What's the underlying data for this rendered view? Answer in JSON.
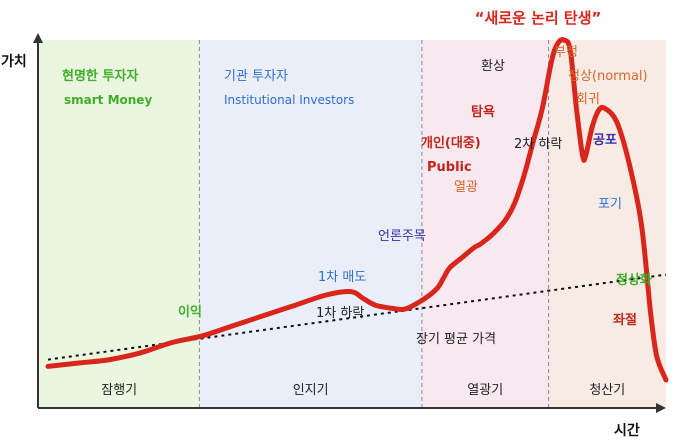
{
  "chart_data": {
    "type": "line",
    "title": "“새로운 논리 탄생”",
    "ylabel": "가치",
    "xlabel": "시간",
    "xlim": [
      0,
      100
    ],
    "ylim": [
      0,
      100
    ],
    "grid": false,
    "series": [
      {
        "name": "",
        "color": "#d8261c",
        "x": [
          0,
          5,
          10,
          15,
          20,
          25,
          30,
          35,
          40,
          45,
          49,
          51,
          53,
          56,
          58,
          61,
          63,
          64,
          65,
          67,
          69,
          70,
          72,
          74,
          75.5,
          77,
          78.5,
          80,
          81.5,
          82.5,
          83.5,
          84.5,
          85.5,
          86.5,
          87,
          88,
          89,
          90,
          92,
          94,
          96,
          97.5,
          98.5,
          100
        ],
        "values": [
          4,
          5,
          6,
          8,
          11,
          13,
          16,
          19,
          22,
          25,
          26,
          24,
          22,
          21,
          21,
          24,
          27,
          30,
          33,
          36,
          39,
          40,
          43,
          47,
          52,
          60,
          70,
          80,
          94,
          99,
          100,
          97,
          80,
          66,
          66,
          74,
          79,
          80,
          76,
          64,
          46,
          20,
          7,
          0
        ]
      },
      {
        "name": "",
        "color": "#111111",
        "dashed": true,
        "x": [
          0,
          100
        ],
        "values": [
          6,
          31
        ]
      }
    ],
    "phases": [
      {
        "label": "잠행기",
        "from": 0,
        "to": 24.5,
        "color": "#eaf6df"
      },
      {
        "label": "인지기",
        "from": 24.5,
        "to": 60.5,
        "color": "#e9eef8"
      },
      {
        "label": "열광기",
        "from": 60.5,
        "to": 81,
        "color": "#f8e8ef"
      },
      {
        "label": "청산기",
        "from": 81,
        "to": 100,
        "color": "#f7ebe4"
      }
    ],
    "annotations": [
      {
        "text": "현명한 투자자",
        "color": "#3fae2a",
        "weight": "bold"
      },
      {
        "text": "smart Money",
        "color": "#3fae2a",
        "weight": "bold"
      },
      {
        "text": "기관 투자자",
        "color": "#2f6fcf",
        "weight": "normal"
      },
      {
        "text": "Institutional Investors",
        "color": "#2f6fcf",
        "weight": "normal"
      },
      {
        "text": "이익",
        "color": "#3fae2a",
        "weight": "bold"
      },
      {
        "text": "1차 매도",
        "color": "#2f6fcf",
        "weight": "normal"
      },
      {
        "text": "1차 하락",
        "color": "#222222",
        "weight": "normal"
      },
      {
        "text": "언론주목",
        "color": "#3a31a8",
        "weight": "normal"
      },
      {
        "text": "장기 평균 가격",
        "color": "#222222",
        "weight": "normal"
      },
      {
        "text": "개인(대중)",
        "color": "#c0261c",
        "weight": "bold"
      },
      {
        "text": "Public",
        "color": "#c0261c",
        "weight": "bold"
      },
      {
        "text": "열광",
        "color": "#d9652a",
        "weight": "normal"
      },
      {
        "text": "탐욕",
        "color": "#c0261c",
        "weight": "bold"
      },
      {
        "text": "환상",
        "color": "#222222",
        "weight": "normal"
      },
      {
        "text": "2차 하락",
        "color": "#222222",
        "weight": "normal"
      },
      {
        "text": "부정",
        "color": "#d9652a",
        "weight": "normal"
      },
      {
        "text": "정상(normal)",
        "color": "#d9652a",
        "weight": "normal"
      },
      {
        "text": "회귀",
        "color": "#d9652a",
        "weight": "normal"
      },
      {
        "text": "공포",
        "color": "#3a31a8",
        "weight": "bold"
      },
      {
        "text": "포기",
        "color": "#2f6fcf",
        "weight": "normal"
      },
      {
        "text": "정상화",
        "color": "#3fae2a",
        "weight": "bold"
      },
      {
        "text": "좌절",
        "color": "#c0261c",
        "weight": "bold"
      }
    ]
  }
}
